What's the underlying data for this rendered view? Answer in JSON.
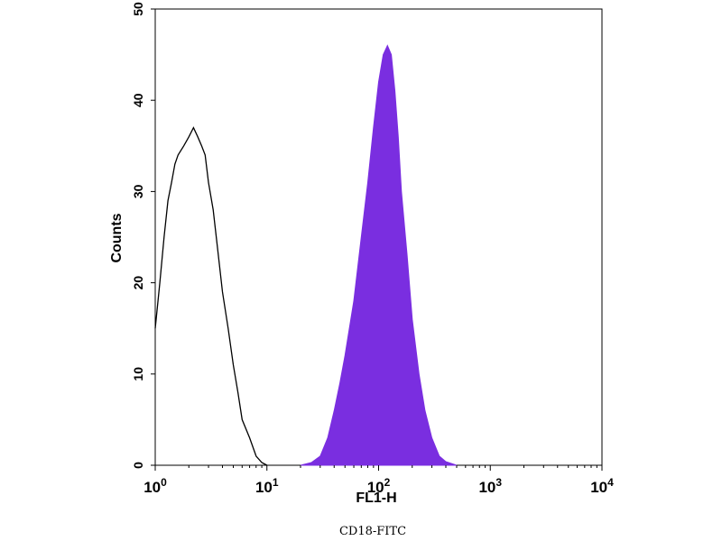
{
  "chart_data": {
    "type": "area",
    "xscale": "log",
    "xlim": [
      1,
      10000
    ],
    "ylim": [
      0,
      50
    ],
    "xlabel": "FL1-H",
    "ylabel": "Counts",
    "x_ticks": [
      1,
      10,
      100,
      1000,
      10000
    ],
    "x_tick_labels": [
      {
        "base": "10",
        "exp": "0"
      },
      {
        "base": "10",
        "exp": "1"
      },
      {
        "base": "10",
        "exp": "2"
      },
      {
        "base": "10",
        "exp": "3"
      },
      {
        "base": "10",
        "exp": "4"
      }
    ],
    "y_ticks": [
      0,
      10,
      20,
      30,
      40,
      50
    ],
    "y_tick_labels": [
      "0",
      "10",
      "20",
      "30",
      "40",
      "50"
    ],
    "grid": false,
    "colors": {
      "filled": "#7a2ee0",
      "outline": "#000000"
    },
    "series": [
      {
        "style": "outline",
        "points": [
          [
            1.0,
            15
          ],
          [
            1.1,
            20
          ],
          [
            1.2,
            25
          ],
          [
            1.3,
            29
          ],
          [
            1.4,
            31
          ],
          [
            1.5,
            33
          ],
          [
            1.6,
            34
          ],
          [
            1.8,
            35
          ],
          [
            2.0,
            36
          ],
          [
            2.2,
            37
          ],
          [
            2.4,
            36
          ],
          [
            2.6,
            35
          ],
          [
            2.8,
            34
          ],
          [
            3.0,
            31
          ],
          [
            3.3,
            28
          ],
          [
            3.6,
            24
          ],
          [
            4.0,
            19
          ],
          [
            4.5,
            15
          ],
          [
            5.0,
            11
          ],
          [
            5.5,
            8
          ],
          [
            6.0,
            5
          ],
          [
            7.0,
            3
          ],
          [
            8.0,
            1
          ],
          [
            9.0,
            0.3
          ],
          [
            10.0,
            0
          ]
        ]
      },
      {
        "style": "filled",
        "points": [
          [
            20,
            0
          ],
          [
            25,
            0.3
          ],
          [
            30,
            1
          ],
          [
            35,
            3
          ],
          [
            40,
            6
          ],
          [
            45,
            9
          ],
          [
            50,
            12
          ],
          [
            60,
            18
          ],
          [
            70,
            25
          ],
          [
            80,
            31
          ],
          [
            90,
            37
          ],
          [
            100,
            42
          ],
          [
            110,
            45
          ],
          [
            120,
            46
          ],
          [
            130,
            45
          ],
          [
            140,
            41
          ],
          [
            150,
            36
          ],
          [
            160,
            30
          ],
          [
            180,
            23
          ],
          [
            200,
            16
          ],
          [
            230,
            10
          ],
          [
            260,
            6
          ],
          [
            300,
            3
          ],
          [
            350,
            1
          ],
          [
            400,
            0.4
          ],
          [
            500,
            0
          ]
        ]
      }
    ]
  },
  "caption": "CD18-FITC"
}
